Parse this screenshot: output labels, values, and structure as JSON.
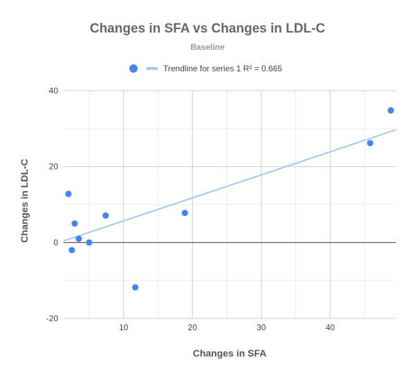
{
  "chart_data": {
    "type": "scatter",
    "title": "Changes in SFA vs Changes in LDL-C",
    "subtitle": "Baseline",
    "xlabel": "Changes in SFA",
    "ylabel": "Changes in LDL-C",
    "xlim": [
      1.3,
      49.5
    ],
    "ylim": [
      -20,
      40
    ],
    "x_ticks": [
      10,
      20,
      30,
      40
    ],
    "y_ticks": [
      -20,
      0,
      20,
      40
    ],
    "x_minor_step": 5,
    "y_minor_step": 10,
    "grid": true,
    "legend_position": "top",
    "series": [
      {
        "points": [
          {
            "x": 2.0,
            "y": 12.8
          },
          {
            "x": 2.5,
            "y": -2.0
          },
          {
            "x": 2.9,
            "y": 5.0
          },
          {
            "x": 3.5,
            "y": 1.0
          },
          {
            "x": 5.0,
            "y": 0.0
          },
          {
            "x": 7.4,
            "y": 7.1
          },
          {
            "x": 11.7,
            "y": -11.8
          },
          {
            "x": 18.9,
            "y": 7.8
          },
          {
            "x": 45.8,
            "y": 26.2
          },
          {
            "x": 48.8,
            "y": 34.8
          }
        ],
        "color": "#4285f4"
      }
    ],
    "trendline": {
      "name": "Trendline for series 1 R² = 0.665",
      "color": "#a8c7f0",
      "slope": 0.607,
      "intercept": -0.37
    }
  }
}
